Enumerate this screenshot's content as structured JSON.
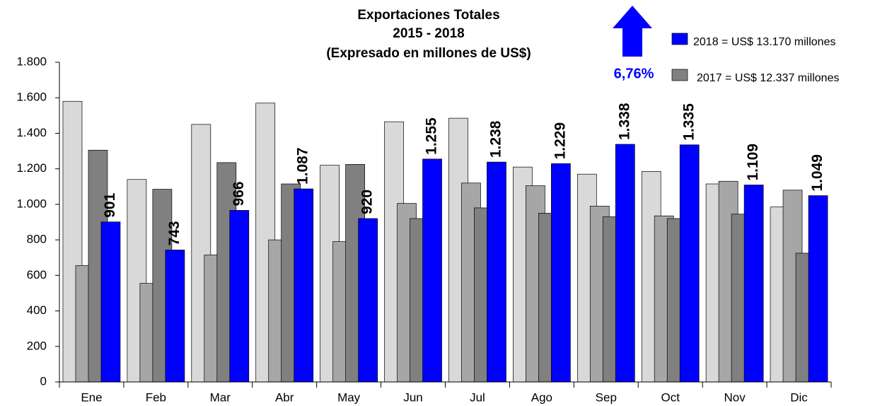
{
  "chart_data": {
    "type": "bar",
    "title": "Exportaciones  Totales",
    "subtitle": "2015 - 2018",
    "note": "(Expresado en millones de US$)",
    "annotation": "6,76%",
    "categories": [
      "Ene",
      "Feb",
      "Mar",
      "Abr",
      "May",
      "Jun",
      "Jul",
      "Ago",
      "Sep",
      "Oct",
      "Nov",
      "Dic"
    ],
    "series": [
      {
        "color": "#d9d9d9",
        "values": [
          1580,
          1140,
          1450,
          1570,
          1220,
          1465,
          1485,
          1210,
          1170,
          1185,
          1115,
          985
        ]
      },
      {
        "color": "#a6a6a6",
        "values": [
          655,
          555,
          715,
          800,
          790,
          1005,
          1120,
          1105,
          990,
          935,
          1130,
          1080
        ]
      },
      {
        "name": "2017 = US$ 12.337 millones",
        "color": "#808080",
        "values": [
          1305,
          1085,
          1235,
          1115,
          1225,
          920,
          980,
          950,
          930,
          920,
          945,
          725
        ]
      },
      {
        "name": "2018 = US$ 13.170 millones",
        "color": "#0000ff",
        "values": [
          901,
          743,
          966,
          1087,
          920,
          1255,
          1238,
          1229,
          1338,
          1335,
          1109,
          1049
        ],
        "value_labels": [
          "901",
          "743",
          "966",
          "1.087",
          "920",
          "1.255",
          "1.238",
          "1.229",
          "1.338",
          "1.335",
          "1.109",
          "1.049"
        ]
      }
    ],
    "ylim": [
      0,
      1800
    ],
    "yticks": [
      0,
      200,
      400,
      600,
      800,
      {
        "value": 1000,
        "label": "1.000"
      },
      {
        "value": 1200,
        "label": "1.200"
      },
      {
        "value": 1400,
        "label": "1.400"
      },
      {
        "value": 1600,
        "label": "1.600"
      },
      {
        "value": 1800,
        "label": "1.800"
      }
    ],
    "grid": false
  }
}
